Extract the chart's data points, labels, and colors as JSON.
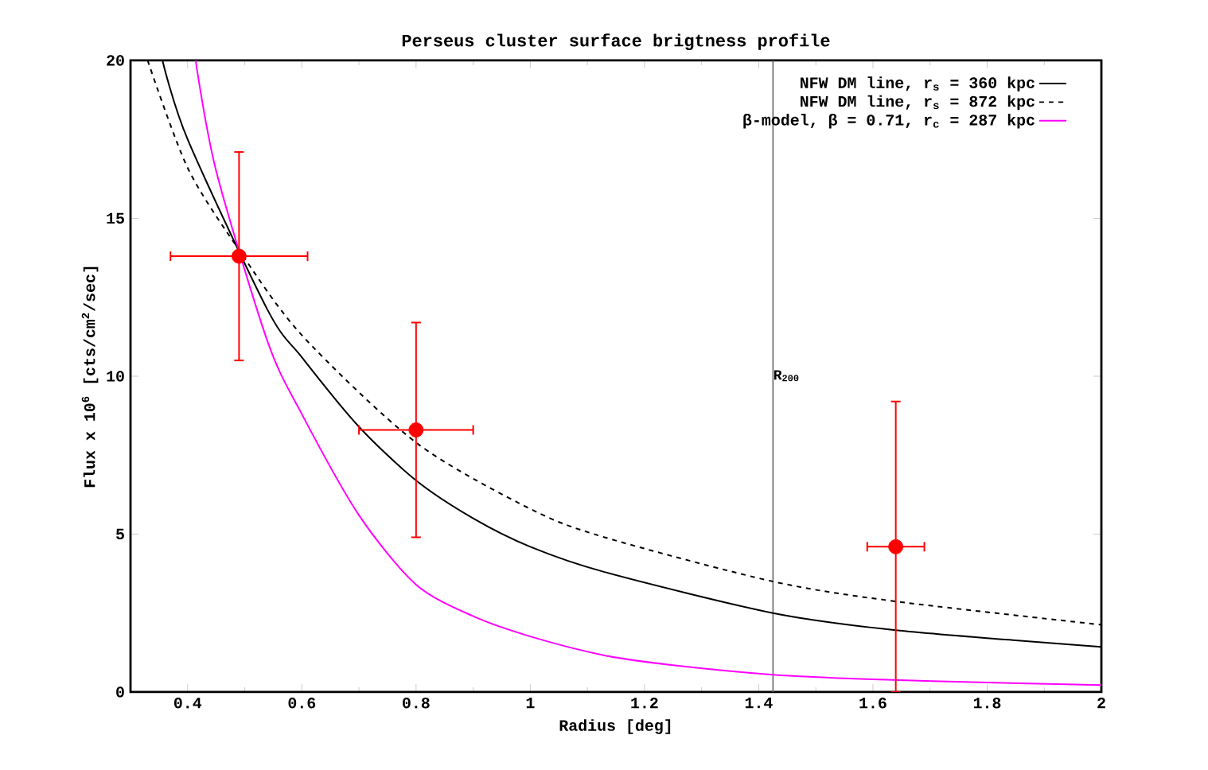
{
  "chart_data": {
    "type": "line",
    "title": "Perseus cluster surface brigtness profile",
    "xlabel": "Radius [deg]",
    "ylabel": "Flux x 10$^{6}$ [cts/cm$^{2}$/sec]",
    "xlim": [
      0.3,
      2
    ],
    "ylim": [
      0,
      20
    ],
    "xticks": [
      0.4,
      0.6,
      0.8,
      1,
      1.2,
      1.4,
      1.6,
      1.8,
      2
    ],
    "yticks": [
      0,
      5,
      10,
      15,
      20
    ],
    "grid": false,
    "legend": "top right",
    "series": [
      {
        "name": "NFW DM line, r$_{s}$ = 360 kpc",
        "color": "#000000",
        "line_style": "solid",
        "marker": "none",
        "x": [
          0.356,
          0.4,
          0.54,
          0.6,
          0.7,
          0.8,
          0.9,
          1.0,
          1.13,
          1.425,
          1.64,
          2.0
        ],
        "values": [
          20,
          17.5,
          12.1,
          10.6,
          8.4,
          6.7,
          5.5,
          4.6,
          3.8,
          2.5,
          1.96,
          1.43
        ]
      },
      {
        "name": "NFW DM line, r$_{s}$ = 872 kpc",
        "color": "#000000",
        "line_style": "dashed",
        "marker": "none",
        "x": [
          0.33,
          0.4,
          0.49,
          0.6,
          0.8,
          1.0,
          1.13,
          1.425,
          1.64,
          2.0
        ],
        "values": [
          20,
          16.6,
          14.0,
          11.3,
          7.9,
          5.8,
          4.9,
          3.5,
          2.87,
          2.13
        ]
      },
      {
        "name": "β-model, β = 0.71, r$_{c}$ = 287 kpc",
        "color": "#ff00ff",
        "line_style": "solid",
        "marker": "none",
        "x": [
          0.414,
          0.45,
          0.54,
          0.6,
          0.7,
          0.8,
          0.9,
          1.0,
          1.13,
          1.25,
          1.425,
          1.6,
          1.8,
          2.0
        ],
        "values": [
          20,
          16.5,
          11.1,
          8.8,
          5.6,
          3.4,
          2.4,
          1.76,
          1.16,
          0.85,
          0.55,
          0.4,
          0.3,
          0.22
        ]
      },
      {
        "type": "scatter",
        "color": "#ff0000",
        "marker": "circle",
        "x": [
          0.49,
          0.8,
          1.64
        ],
        "values": [
          13.8,
          8.3,
          4.6
        ],
        "errors": [
          3.3,
          3.4,
          4.6
        ],
        "xerrors": [
          0.12,
          0.1,
          0.05
        ]
      }
    ],
    "ref_lines": [
      {
        "axis": "x",
        "value": 1.425,
        "label": "R$_{200}$",
        "color": "#666666"
      }
    ]
  }
}
